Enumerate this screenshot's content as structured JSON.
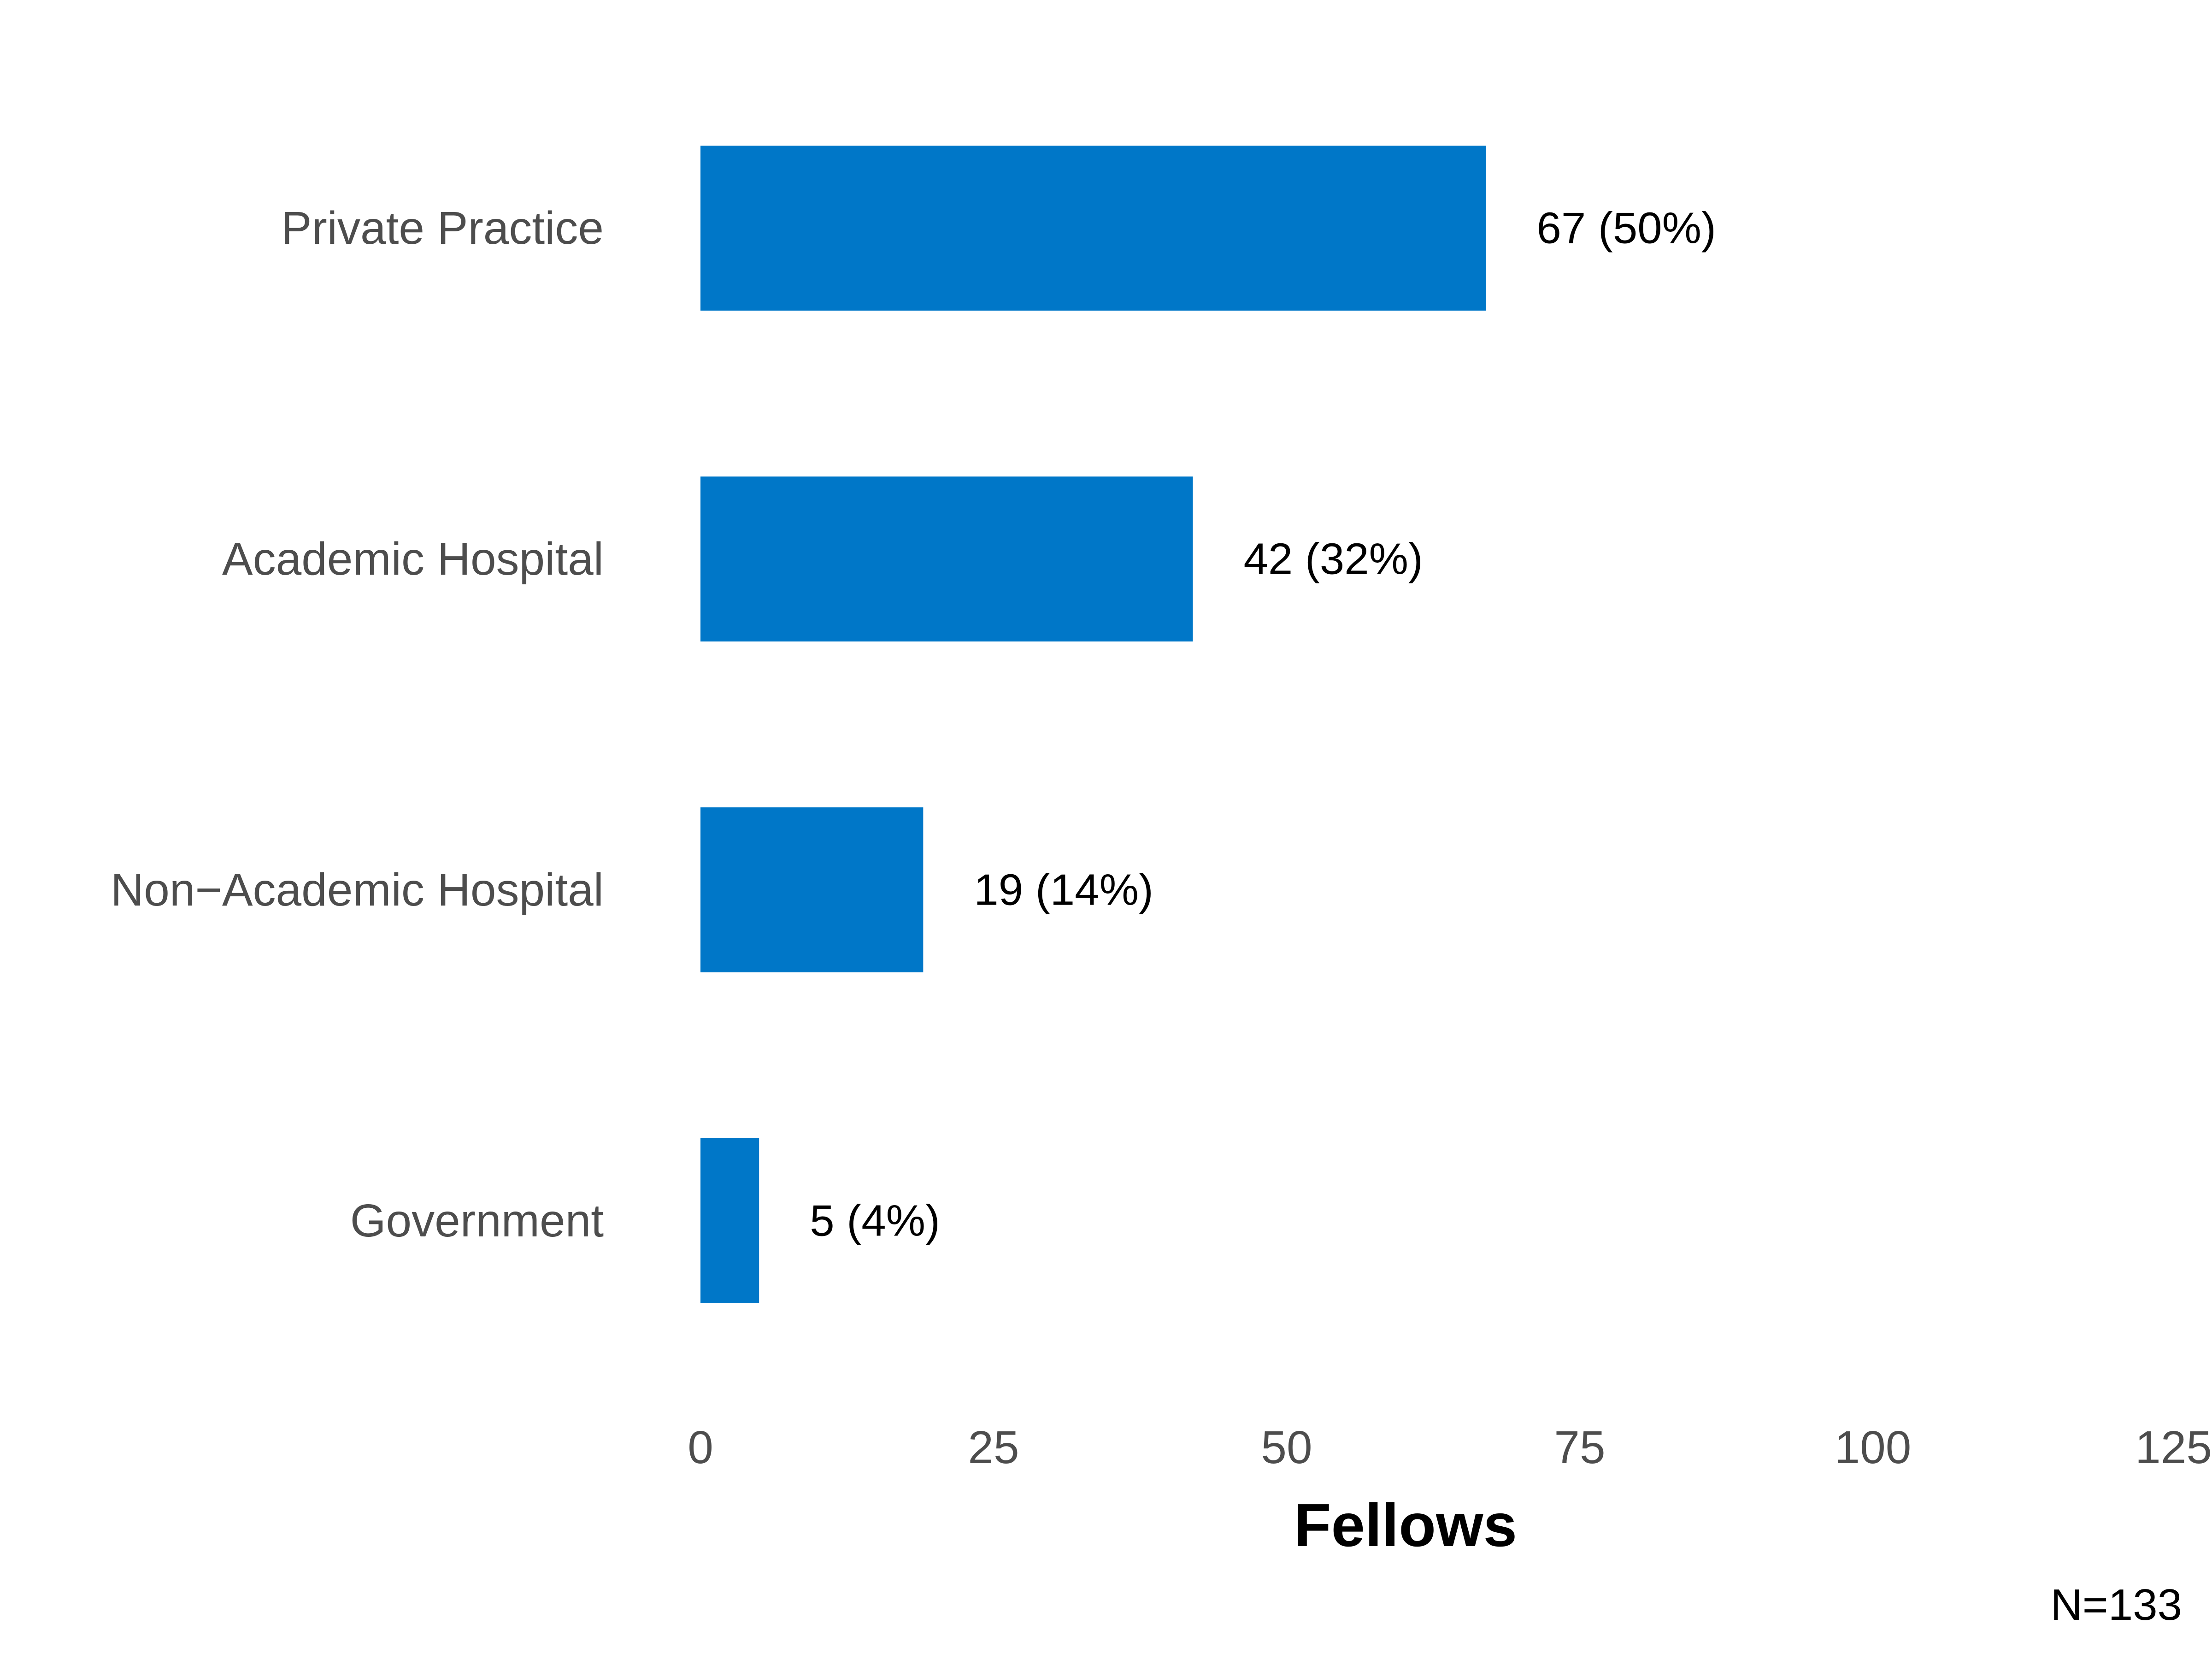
{
  "chart_data": {
    "type": "bar",
    "orientation": "horizontal",
    "categories": [
      "Private Practice",
      "Academic Hospital",
      "Non−Academic Hospital",
      "Government"
    ],
    "values": [
      67,
      42,
      19,
      5
    ],
    "data_labels": [
      "67 (50%)",
      "42 (32%)",
      "19 (14%)",
      "5 (4%)"
    ],
    "xlabel": "Fellows",
    "ylabel": "",
    "xlim": [
      0,
      125
    ],
    "x_ticks": [
      0,
      25,
      50,
      75,
      100,
      125
    ],
    "x_tick_labels": [
      "0",
      "25",
      "50",
      "75",
      "100",
      "125"
    ],
    "bar_color": "#0077c8",
    "grid": false,
    "legend": "none",
    "note": "N=133"
  }
}
